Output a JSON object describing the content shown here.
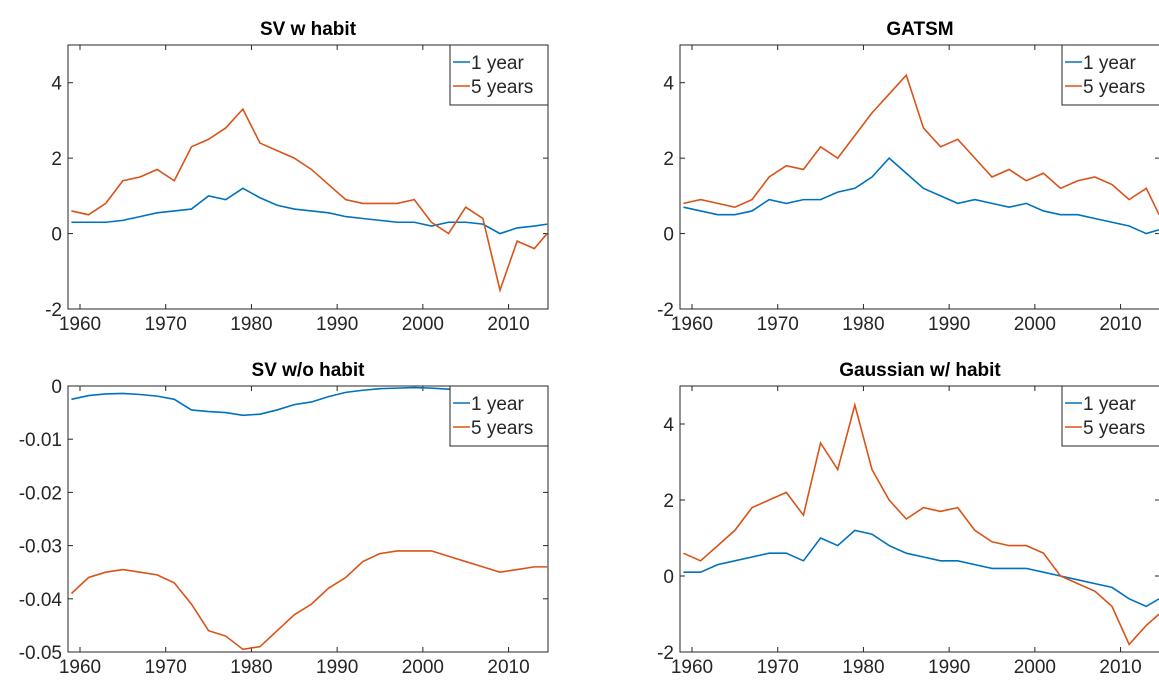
{
  "chart_data": [
    {
      "type": "line",
      "title": "SV w habit",
      "x": [
        1959,
        1961,
        1963,
        1965,
        1967,
        1969,
        1971,
        1973,
        1975,
        1977,
        1979,
        1981,
        1983,
        1985,
        1987,
        1989,
        1991,
        1993,
        1995,
        1997,
        1999,
        2001,
        2003,
        2005,
        2007,
        2009,
        2011,
        2013,
        2014.5
      ],
      "series": [
        {
          "name": "1 year",
          "color": "#0072BD",
          "values": [
            0.3,
            0.3,
            0.3,
            0.35,
            0.45,
            0.55,
            0.6,
            0.65,
            1.0,
            0.9,
            1.2,
            0.95,
            0.75,
            0.65,
            0.6,
            0.55,
            0.45,
            0.4,
            0.35,
            0.3,
            0.3,
            0.2,
            0.3,
            0.3,
            0.25,
            0.0,
            0.15,
            0.2,
            0.25
          ]
        },
        {
          "name": "5 years",
          "color": "#D95319",
          "values": [
            0.6,
            0.5,
            0.8,
            1.4,
            1.5,
            1.7,
            1.4,
            2.3,
            2.5,
            2.8,
            3.3,
            2.4,
            2.2,
            2.0,
            1.7,
            1.3,
            0.9,
            0.8,
            0.8,
            0.8,
            0.9,
            0.3,
            0.0,
            0.7,
            0.4,
            -1.5,
            -0.2,
            -0.4,
            0.0
          ]
        }
      ],
      "xlim": [
        1958.6,
        2014.6
      ],
      "xticks": [
        1960,
        1970,
        1980,
        1990,
        2000,
        2010
      ],
      "ylim": [
        -2,
        5
      ],
      "yticks": [
        -2,
        0,
        2,
        4
      ],
      "legend": "top-right"
    },
    {
      "type": "line",
      "title": "GATSM",
      "x": [
        1959,
        1961,
        1963,
        1965,
        1967,
        1969,
        1971,
        1973,
        1975,
        1977,
        1979,
        1981,
        1983,
        1985,
        1987,
        1989,
        1991,
        1993,
        1995,
        1997,
        1999,
        2001,
        2003,
        2005,
        2007,
        2009,
        2011,
        2013,
        2014.5
      ],
      "series": [
        {
          "name": "1 year",
          "color": "#0072BD",
          "values": [
            0.7,
            0.6,
            0.5,
            0.5,
            0.6,
            0.9,
            0.8,
            0.9,
            0.9,
            1.1,
            1.2,
            1.5,
            2.0,
            1.6,
            1.2,
            1.0,
            0.8,
            0.9,
            0.8,
            0.7,
            0.8,
            0.6,
            0.5,
            0.5,
            0.4,
            0.3,
            0.2,
            0.0,
            0.1
          ]
        },
        {
          "name": "5 years",
          "color": "#D95319",
          "values": [
            0.8,
            0.9,
            0.8,
            0.7,
            0.9,
            1.5,
            1.8,
            1.7,
            2.3,
            2.0,
            2.6,
            3.2,
            3.7,
            4.2,
            2.8,
            2.3,
            2.5,
            2.0,
            1.5,
            1.7,
            1.4,
            1.6,
            1.2,
            1.4,
            1.5,
            1.3,
            0.9,
            1.2,
            0.5
          ]
        }
      ],
      "xlim": [
        1958.6,
        2014.6
      ],
      "xticks": [
        1960,
        1970,
        1980,
        1990,
        2000,
        2010
      ],
      "ylim": [
        -2,
        5
      ],
      "yticks": [
        -2,
        0,
        2,
        4
      ],
      "legend": "top-right"
    },
    {
      "type": "line",
      "title": "SV w/o habit",
      "x": [
        1959,
        1961,
        1963,
        1965,
        1967,
        1969,
        1971,
        1973,
        1975,
        1977,
        1979,
        1981,
        1983,
        1985,
        1987,
        1989,
        1991,
        1993,
        1995,
        1997,
        1999,
        2001,
        2003,
        2005,
        2007,
        2009,
        2011,
        2013,
        2014.5
      ],
      "series": [
        {
          "name": "1 year",
          "color": "#0072BD",
          "values": [
            -0.0025,
            -0.0018,
            -0.0015,
            -0.0014,
            -0.0016,
            -0.0019,
            -0.0025,
            -0.0045,
            -0.0048,
            -0.005,
            -0.0055,
            -0.0053,
            -0.0045,
            -0.0035,
            -0.003,
            -0.002,
            -0.0012,
            -0.0008,
            -0.0005,
            -0.0004,
            -0.0003,
            -0.0004,
            -0.0006,
            -0.0008,
            -0.0009,
            -0.0012,
            -0.0012,
            -0.0012,
            -0.0013
          ]
        },
        {
          "name": "5 years",
          "color": "#D95319",
          "values": [
            -0.039,
            -0.036,
            -0.035,
            -0.0345,
            -0.035,
            -0.0355,
            -0.037,
            -0.041,
            -0.046,
            -0.047,
            -0.0495,
            -0.049,
            -0.046,
            -0.043,
            -0.041,
            -0.038,
            -0.036,
            -0.033,
            -0.0315,
            -0.031,
            -0.031,
            -0.031,
            -0.032,
            -0.033,
            -0.034,
            -0.035,
            -0.0345,
            -0.034,
            -0.034
          ]
        }
      ],
      "xlim": [
        1958.6,
        2014.6
      ],
      "xticks": [
        1960,
        1970,
        1980,
        1990,
        2000,
        2010
      ],
      "ylim": [
        -0.05,
        0
      ],
      "yticks": [
        -0.05,
        -0.04,
        -0.03,
        -0.02,
        -0.01,
        0
      ],
      "legend": "top-right"
    },
    {
      "type": "line",
      "title": "Gaussian w/ habit",
      "x": [
        1959,
        1961,
        1963,
        1965,
        1967,
        1969,
        1971,
        1973,
        1975,
        1977,
        1979,
        1981,
        1983,
        1985,
        1987,
        1989,
        1991,
        1993,
        1995,
        1997,
        1999,
        2001,
        2003,
        2005,
        2007,
        2009,
        2011,
        2013,
        2014.5
      ],
      "series": [
        {
          "name": "1 year",
          "color": "#0072BD",
          "values": [
            0.1,
            0.1,
            0.3,
            0.4,
            0.5,
            0.6,
            0.6,
            0.4,
            1.0,
            0.8,
            1.2,
            1.1,
            0.8,
            0.6,
            0.5,
            0.4,
            0.4,
            0.3,
            0.2,
            0.2,
            0.2,
            0.1,
            0.0,
            -0.1,
            -0.2,
            -0.3,
            -0.6,
            -0.8,
            -0.6
          ]
        },
        {
          "name": "5 years",
          "color": "#D95319",
          "values": [
            0.6,
            0.4,
            0.8,
            1.2,
            1.8,
            2.0,
            2.2,
            1.6,
            3.5,
            2.8,
            4.5,
            2.8,
            2.0,
            1.5,
            1.8,
            1.7,
            1.8,
            1.2,
            0.9,
            0.8,
            0.8,
            0.6,
            0.0,
            -0.2,
            -0.4,
            -0.8,
            -1.8,
            -1.3,
            -1.0
          ]
        }
      ],
      "xlim": [
        1958.6,
        2014.6
      ],
      "xticks": [
        1960,
        1970,
        1980,
        1990,
        2000,
        2010
      ],
      "ylim": [
        -2,
        5
      ],
      "yticks": [
        -2,
        0,
        2,
        4
      ],
      "legend": "top-right"
    }
  ]
}
